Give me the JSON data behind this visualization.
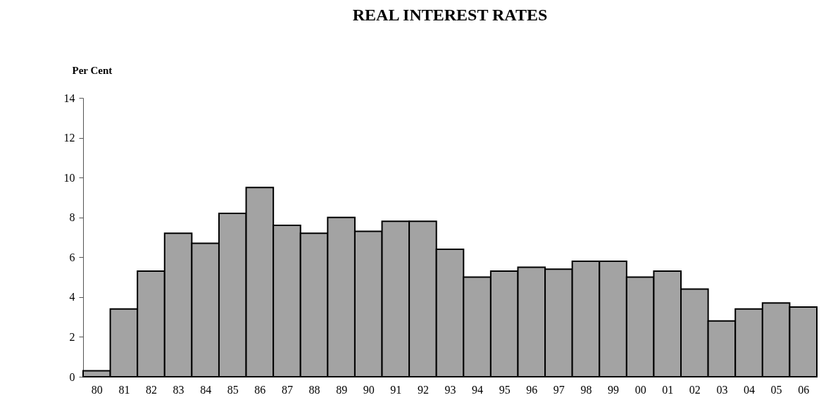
{
  "chart_data": {
    "type": "bar",
    "title": "REAL INTEREST RATES",
    "ylabel": "Per Cent",
    "categories": [
      "80",
      "81",
      "82",
      "83",
      "84",
      "85",
      "86",
      "87",
      "88",
      "89",
      "90",
      "91",
      "92",
      "93",
      "94",
      "95",
      "96",
      "97",
      "98",
      "99",
      "00",
      "01",
      "02",
      "03",
      "04",
      "05",
      "06"
    ],
    "values": [
      0.3,
      3.4,
      5.3,
      7.2,
      6.7,
      8.2,
      9.5,
      7.6,
      7.2,
      8.0,
      7.3,
      7.8,
      7.8,
      6.4,
      5.0,
      5.3,
      5.5,
      5.4,
      5.8,
      5.8,
      5.0,
      5.3,
      4.4,
      2.8,
      3.4,
      3.7,
      3.5
    ],
    "color": "#a3a3a3",
    "ylim": [
      0,
      14
    ],
    "yticks": [
      0,
      2,
      4,
      6,
      8,
      10,
      12,
      14
    ],
    "grid": false
  }
}
